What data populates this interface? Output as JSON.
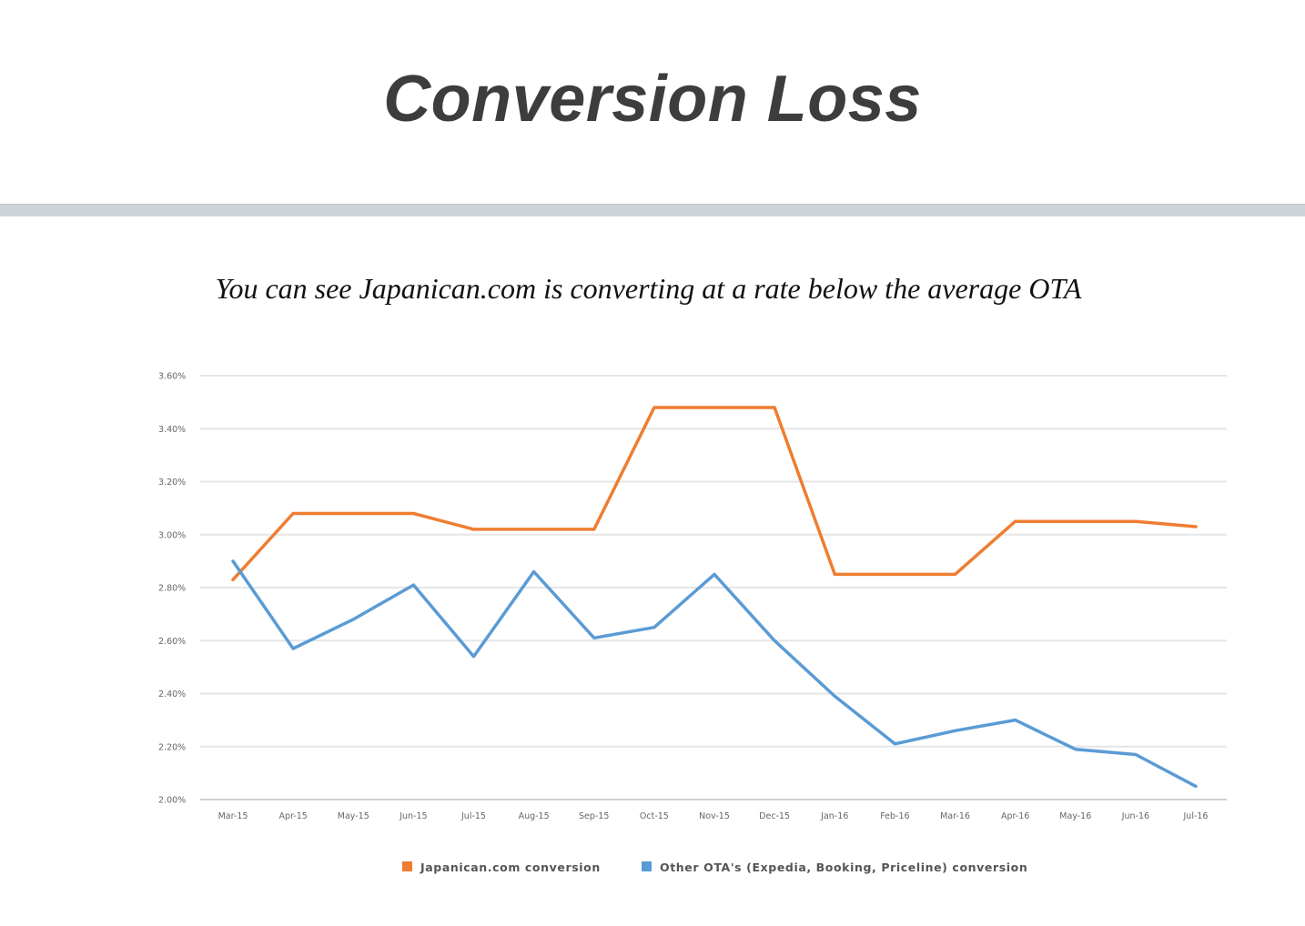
{
  "slide": {
    "title": "Conversion Loss",
    "subtitle": "You can see Japanican.com is converting at a rate below the average OTA"
  },
  "colors": {
    "divider": "#cfd4d8",
    "series_japanican": "#ee7d31",
    "series_other": "#5a9bd5",
    "grid": "#e6e6e6"
  },
  "chart_data": {
    "type": "line",
    "title": "",
    "xlabel": "",
    "ylabel": "",
    "categories": [
      "Mar-15",
      "Apr-15",
      "May-15",
      "Jun-15",
      "Jul-15",
      "Aug-15",
      "Sep-15",
      "Oct-15",
      "Nov-15",
      "Dec-15",
      "Jan-16",
      "Feb-16",
      "Mar-16",
      "Apr-16",
      "May-16",
      "Jun-16",
      "Jul-16"
    ],
    "y_ticks": [
      "2.00%",
      "2.20%",
      "2.40%",
      "2.60%",
      "2.80%",
      "3.00%",
      "3.20%",
      "3.40%",
      "3.60%"
    ],
    "ylim": [
      2.0,
      3.6
    ],
    "grid": true,
    "legend_position": "bottom",
    "series": [
      {
        "name": "Japanican.com conversion",
        "color": "#ee7d31",
        "values": [
          2.83,
          3.08,
          3.08,
          3.08,
          3.02,
          3.02,
          3.02,
          3.48,
          3.48,
          3.48,
          2.85,
          2.85,
          2.85,
          3.05,
          3.05,
          3.05,
          3.03
        ]
      },
      {
        "name": "Other OTA's (Expedia, Booking, Priceline) conversion",
        "color": "#5a9bd5",
        "values": [
          2.9,
          2.57,
          2.68,
          2.81,
          2.54,
          2.86,
          2.61,
          2.65,
          2.85,
          2.6,
          2.39,
          2.21,
          2.26,
          2.3,
          2.19,
          2.17,
          2.05
        ]
      }
    ]
  }
}
